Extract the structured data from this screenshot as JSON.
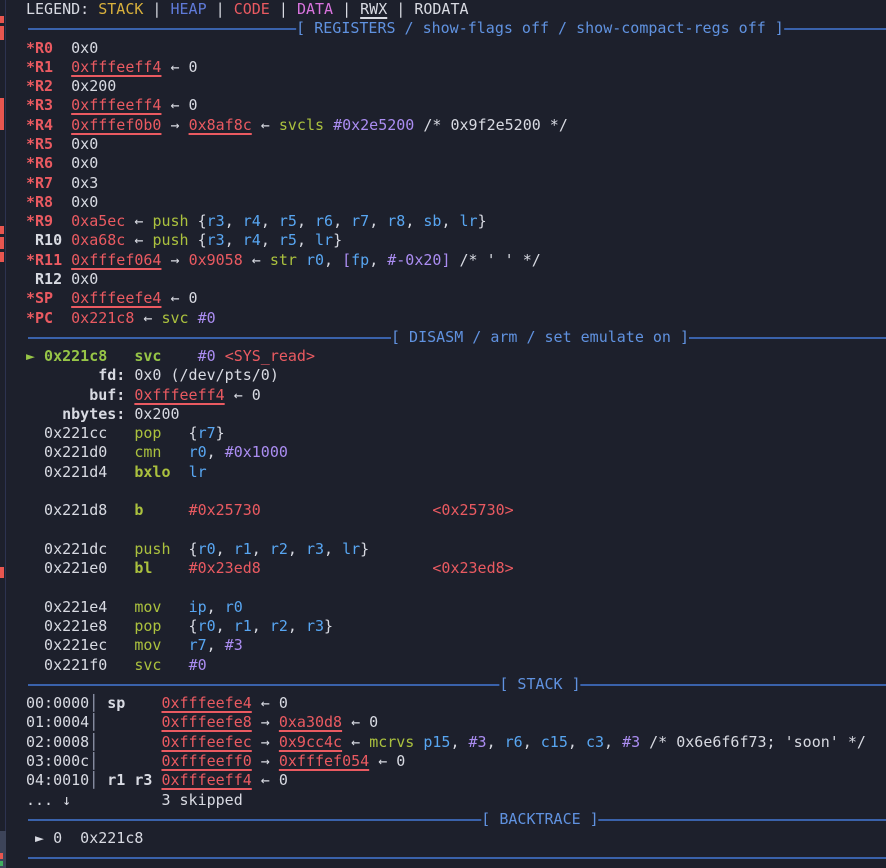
{
  "app": "pwndbg context view",
  "colors": {
    "background": "#1d202c",
    "foreground": "#d8dae2",
    "stack_legend": "#d8b03c",
    "heap_legend": "#5f7ad8",
    "code": "#ea5a61",
    "data_legend": "#d873dd",
    "mnemonic": "#abc13e",
    "current_pc": "#97c647",
    "register_operand": "#58a6f2",
    "immediate": "#ab8df2",
    "separator_rule": "#3a62ab",
    "separator_text": "#6092e0",
    "gutter_marker": "#e8564f"
  },
  "lines": [
    {
      "name": "legend-line",
      "tokens": [
        [
          "w",
          "LEGEND: "
        ],
        [
          "yel",
          "STACK"
        ],
        [
          "w",
          " | "
        ],
        [
          "heap",
          "HEAP"
        ],
        [
          "w",
          " | "
        ],
        [
          "red",
          "CODE"
        ],
        [
          "w",
          " | "
        ],
        [
          "data",
          "DATA"
        ],
        [
          "w",
          " | "
        ],
        [
          "wu",
          "RWX"
        ],
        [
          "w",
          " | "
        ],
        [
          "w",
          "RODATA"
        ]
      ]
    },
    {
      "name": "registers-separator",
      "sep": true,
      "label": "[ REGISTERS / show-flags off / show-compact-regs off ]"
    },
    {
      "name": "reg-r0-line",
      "tokens": [
        [
          "red b",
          "*R0"
        ],
        [
          "w",
          "  0x0"
        ]
      ]
    },
    {
      "name": "reg-r1-line",
      "tokens": [
        [
          "red b",
          "*R1"
        ],
        [
          "w",
          "  "
        ],
        [
          "redu",
          "0xfffeeff4"
        ],
        [
          "w",
          " ← 0"
        ]
      ]
    },
    {
      "name": "reg-r2-line",
      "tokens": [
        [
          "red b",
          "*R2"
        ],
        [
          "w",
          "  0x200"
        ]
      ]
    },
    {
      "name": "reg-r3-line",
      "tokens": [
        [
          "red b",
          "*R3"
        ],
        [
          "w",
          "  "
        ],
        [
          "redu",
          "0xfffeeff4"
        ],
        [
          "w",
          " ← 0"
        ]
      ]
    },
    {
      "name": "reg-r4-line",
      "tokens": [
        [
          "red b",
          "*R4"
        ],
        [
          "w",
          "  "
        ],
        [
          "redu",
          "0xfffef0b0"
        ],
        [
          "w",
          " → "
        ],
        [
          "redu",
          "0x8af8c"
        ],
        [
          "w",
          " ← "
        ],
        [
          "grn",
          "svcls"
        ],
        [
          "w",
          " "
        ],
        [
          "pur",
          "#0x2e5200"
        ],
        [
          "w",
          " /* 0x9f2e5200 */"
        ]
      ]
    },
    {
      "name": "reg-r5-line",
      "tokens": [
        [
          "red b",
          "*R5"
        ],
        [
          "w",
          "  0x0"
        ]
      ]
    },
    {
      "name": "reg-r6-line",
      "tokens": [
        [
          "red b",
          "*R6"
        ],
        [
          "w",
          "  0x0"
        ]
      ]
    },
    {
      "name": "reg-r7-line",
      "tokens": [
        [
          "red b",
          "*R7"
        ],
        [
          "w",
          "  0x3"
        ]
      ]
    },
    {
      "name": "reg-r8-line",
      "tokens": [
        [
          "red b",
          "*R8"
        ],
        [
          "w",
          "  0x0"
        ]
      ]
    },
    {
      "name": "reg-r9-line",
      "tokens": [
        [
          "red b",
          "*R9"
        ],
        [
          "w",
          "  "
        ],
        [
          "red",
          "0xa5ec"
        ],
        [
          "w",
          " ← "
        ],
        [
          "grn",
          "push"
        ],
        [
          "w",
          " {"
        ],
        [
          "blu",
          "r3"
        ],
        [
          "w",
          ", "
        ],
        [
          "blu",
          "r4"
        ],
        [
          "w",
          ", "
        ],
        [
          "blu",
          "r5"
        ],
        [
          "w",
          ", "
        ],
        [
          "blu",
          "r6"
        ],
        [
          "w",
          ", "
        ],
        [
          "blu",
          "r7"
        ],
        [
          "w",
          ", "
        ],
        [
          "blu",
          "r8"
        ],
        [
          "w",
          ", "
        ],
        [
          "blu",
          "sb"
        ],
        [
          "w",
          ", "
        ],
        [
          "blu",
          "lr"
        ],
        [
          "w",
          "}"
        ]
      ]
    },
    {
      "name": "reg-r10-line",
      "tokens": [
        [
          "w b",
          " R10"
        ],
        [
          "w",
          " "
        ],
        [
          "red",
          "0xa68c"
        ],
        [
          "w",
          " ← "
        ],
        [
          "grn",
          "push"
        ],
        [
          "w",
          " {"
        ],
        [
          "blu",
          "r3"
        ],
        [
          "w",
          ", "
        ],
        [
          "blu",
          "r4"
        ],
        [
          "w",
          ", "
        ],
        [
          "blu",
          "r5"
        ],
        [
          "w",
          ", "
        ],
        [
          "blu",
          "lr"
        ],
        [
          "w",
          "}"
        ]
      ]
    },
    {
      "name": "reg-r11-line",
      "tokens": [
        [
          "red b",
          "*R11"
        ],
        [
          "w",
          " "
        ],
        [
          "redu",
          "0xfffef064"
        ],
        [
          "w",
          " → "
        ],
        [
          "red",
          "0x9058"
        ],
        [
          "w",
          " ← "
        ],
        [
          "grn",
          "str"
        ],
        [
          "w",
          " "
        ],
        [
          "blu",
          "r0"
        ],
        [
          "w",
          ", "
        ],
        [
          "pur",
          "["
        ],
        [
          "blu",
          "fp"
        ],
        [
          "w",
          ", "
        ],
        [
          "pur",
          "#-0x20"
        ],
        [
          "pur",
          "]"
        ],
        [
          "w",
          " /* ' ' */"
        ]
      ]
    },
    {
      "name": "reg-r12-line",
      "tokens": [
        [
          "w b",
          " R12"
        ],
        [
          "w",
          " 0x0"
        ]
      ]
    },
    {
      "name": "reg-sp-line",
      "tokens": [
        [
          "red b",
          "*SP"
        ],
        [
          "w",
          "  "
        ],
        [
          "redu",
          "0xfffeefe4"
        ],
        [
          "w",
          " ← 0"
        ]
      ]
    },
    {
      "name": "reg-pc-line",
      "tokens": [
        [
          "red b",
          "*PC"
        ],
        [
          "w",
          "  "
        ],
        [
          "red",
          "0x221c8"
        ],
        [
          "w",
          " ← "
        ],
        [
          "grn",
          "svc"
        ],
        [
          "w",
          " "
        ],
        [
          "pur",
          "#0"
        ]
      ]
    },
    {
      "name": "disasm-separator",
      "sep": true,
      "label": "[ DISASM / arm / set emulate on ]"
    },
    {
      "name": "disasm-current-line",
      "tokens": [
        [
          "grnb",
          "► 0x221c8"
        ],
        [
          "w",
          "   "
        ],
        [
          "grnb",
          "svc"
        ],
        [
          "w",
          "    "
        ],
        [
          "pur",
          "#0"
        ],
        [
          "w",
          " "
        ],
        [
          "red",
          "<SYS_read>"
        ]
      ]
    },
    {
      "name": "syscall-arg-fd-line",
      "tokens": [
        [
          "w b",
          "        fd:"
        ],
        [
          "w",
          " 0x0 (/dev/pts/0)"
        ]
      ]
    },
    {
      "name": "syscall-arg-buf-line",
      "tokens": [
        [
          "w b",
          "       buf:"
        ],
        [
          "w",
          " "
        ],
        [
          "redu",
          "0xfffeeff4"
        ],
        [
          "w",
          " ← 0"
        ]
      ]
    },
    {
      "name": "syscall-arg-nbytes-line",
      "tokens": [
        [
          "w b",
          "    nbytes:"
        ],
        [
          "w",
          " 0x200"
        ]
      ]
    },
    {
      "name": "disasm-line-0x221cc",
      "tokens": [
        [
          "w",
          "  0x221cc   "
        ],
        [
          "grn",
          "pop"
        ],
        [
          "w",
          "   {"
        ],
        [
          "blu",
          "r7"
        ],
        [
          "w",
          "}"
        ]
      ]
    },
    {
      "name": "disasm-line-0x221d0",
      "tokens": [
        [
          "w",
          "  0x221d0   "
        ],
        [
          "grn",
          "cmn"
        ],
        [
          "w",
          "   "
        ],
        [
          "blu",
          "r0"
        ],
        [
          "w",
          ", "
        ],
        [
          "pur",
          "#0x1000"
        ]
      ]
    },
    {
      "name": "disasm-line-0x221d4",
      "tokens": [
        [
          "w",
          "  0x221d4   "
        ],
        [
          "grn b",
          "bxlo"
        ],
        [
          "w",
          "  "
        ],
        [
          "blu",
          "lr"
        ]
      ]
    },
    {
      "name": "disasm-blank-1",
      "tokens": []
    },
    {
      "name": "disasm-line-0x221d8",
      "tokens": [
        [
          "w",
          "  0x221d8   "
        ],
        [
          "grn b",
          "b"
        ],
        [
          "w",
          "     "
        ],
        [
          "red",
          "#0x25730"
        ],
        [
          "w",
          "                   "
        ],
        [
          "red",
          "<0x25730>"
        ]
      ]
    },
    {
      "name": "disasm-blank-2",
      "tokens": []
    },
    {
      "name": "disasm-line-0x221dc",
      "tokens": [
        [
          "w",
          "  0x221dc   "
        ],
        [
          "grn",
          "push"
        ],
        [
          "w",
          "  {"
        ],
        [
          "blu",
          "r0"
        ],
        [
          "w",
          ", "
        ],
        [
          "blu",
          "r1"
        ],
        [
          "w",
          ", "
        ],
        [
          "blu",
          "r2"
        ],
        [
          "w",
          ", "
        ],
        [
          "blu",
          "r3"
        ],
        [
          "w",
          ", "
        ],
        [
          "blu",
          "lr"
        ],
        [
          "w",
          "}"
        ]
      ]
    },
    {
      "name": "disasm-line-0x221e0",
      "tokens": [
        [
          "w",
          "  0x221e0   "
        ],
        [
          "grn b",
          "bl"
        ],
        [
          "w",
          "    "
        ],
        [
          "red",
          "#0x23ed8"
        ],
        [
          "w",
          "                   "
        ],
        [
          "red",
          "<0x23ed8>"
        ]
      ]
    },
    {
      "name": "disasm-blank-3",
      "tokens": []
    },
    {
      "name": "disasm-line-0x221e4",
      "tokens": [
        [
          "w",
          "  0x221e4   "
        ],
        [
          "grn",
          "mov"
        ],
        [
          "w",
          "   "
        ],
        [
          "blu",
          "ip"
        ],
        [
          "w",
          ", "
        ],
        [
          "blu",
          "r0"
        ]
      ]
    },
    {
      "name": "disasm-line-0x221e8",
      "tokens": [
        [
          "w",
          "  0x221e8   "
        ],
        [
          "grn",
          "pop"
        ],
        [
          "w",
          "   {"
        ],
        [
          "blu",
          "r0"
        ],
        [
          "w",
          ", "
        ],
        [
          "blu",
          "r1"
        ],
        [
          "w",
          ", "
        ],
        [
          "blu",
          "r2"
        ],
        [
          "w",
          ", "
        ],
        [
          "blu",
          "r3"
        ],
        [
          "w",
          "}"
        ]
      ]
    },
    {
      "name": "disasm-line-0x221ec",
      "tokens": [
        [
          "w",
          "  0x221ec   "
        ],
        [
          "grn",
          "mov"
        ],
        [
          "w",
          "   "
        ],
        [
          "blu",
          "r7"
        ],
        [
          "w",
          ", "
        ],
        [
          "pur",
          "#3"
        ]
      ]
    },
    {
      "name": "disasm-line-0x221f0",
      "tokens": [
        [
          "w",
          "  0x221f0   "
        ],
        [
          "grn",
          "svc"
        ],
        [
          "w",
          "   "
        ],
        [
          "pur",
          "#0"
        ]
      ]
    },
    {
      "name": "stack-separator",
      "sep": true,
      "label": "[ STACK ]"
    },
    {
      "name": "stack-line-00",
      "tokens": [
        [
          "w",
          "00:0000"
        ],
        [
          "pipe",
          "│"
        ],
        [
          "w",
          " "
        ],
        [
          "w b",
          "sp"
        ],
        [
          "w",
          "    "
        ],
        [
          "redu",
          "0xfffeefe4"
        ],
        [
          "w",
          " ← 0"
        ]
      ]
    },
    {
      "name": "stack-line-01",
      "tokens": [
        [
          "w",
          "01:0004"
        ],
        [
          "pipe",
          "│"
        ],
        [
          "w",
          "       "
        ],
        [
          "redu",
          "0xfffeefe8"
        ],
        [
          "w",
          " → "
        ],
        [
          "redu",
          "0xa30d8"
        ],
        [
          "w",
          " ← 0"
        ]
      ]
    },
    {
      "name": "stack-line-02",
      "tokens": [
        [
          "w",
          "02:0008"
        ],
        [
          "pipe",
          "│"
        ],
        [
          "w",
          "       "
        ],
        [
          "redu",
          "0xfffeefec"
        ],
        [
          "w",
          " → "
        ],
        [
          "redu",
          "0x9cc4c"
        ],
        [
          "w",
          " ← "
        ],
        [
          "grn",
          "mcrvs"
        ],
        [
          "w",
          " "
        ],
        [
          "blu",
          "p15"
        ],
        [
          "w",
          ", "
        ],
        [
          "pur",
          "#3"
        ],
        [
          "w",
          ", "
        ],
        [
          "blu",
          "r6"
        ],
        [
          "w",
          ", "
        ],
        [
          "blu",
          "c15"
        ],
        [
          "w",
          ", "
        ],
        [
          "blu",
          "c3"
        ],
        [
          "w",
          ", "
        ],
        [
          "pur",
          "#3"
        ],
        [
          "w",
          " /* 0x6e6f6f73; 'soon' */"
        ]
      ]
    },
    {
      "name": "stack-line-03",
      "tokens": [
        [
          "w",
          "03:000c"
        ],
        [
          "pipe",
          "│"
        ],
        [
          "w",
          "       "
        ],
        [
          "redu",
          "0xfffeeff0"
        ],
        [
          "w",
          " → "
        ],
        [
          "redu",
          "0xfffef054"
        ],
        [
          "w",
          " ← 0"
        ]
      ]
    },
    {
      "name": "stack-line-04",
      "tokens": [
        [
          "w",
          "04:0010"
        ],
        [
          "pipe",
          "│"
        ],
        [
          "w",
          " "
        ],
        [
          "w b",
          "r1 r3"
        ],
        [
          "w",
          " "
        ],
        [
          "redu",
          "0xfffeeff4"
        ],
        [
          "w",
          " ← 0"
        ]
      ]
    },
    {
      "name": "stack-skipped-line",
      "tokens": [
        [
          "w",
          "... ↓"
        ],
        [
          "w",
          "          3 skipped"
        ]
      ]
    },
    {
      "name": "backtrace-separator",
      "sep": true,
      "label": "[ BACKTRACE ]"
    },
    {
      "name": "backtrace-frame-0-line",
      "tokens": [
        [
          "w",
          " ► 0  0x221c8"
        ]
      ]
    },
    {
      "name": "bottom-rule",
      "sep": true,
      "label": ""
    }
  ]
}
